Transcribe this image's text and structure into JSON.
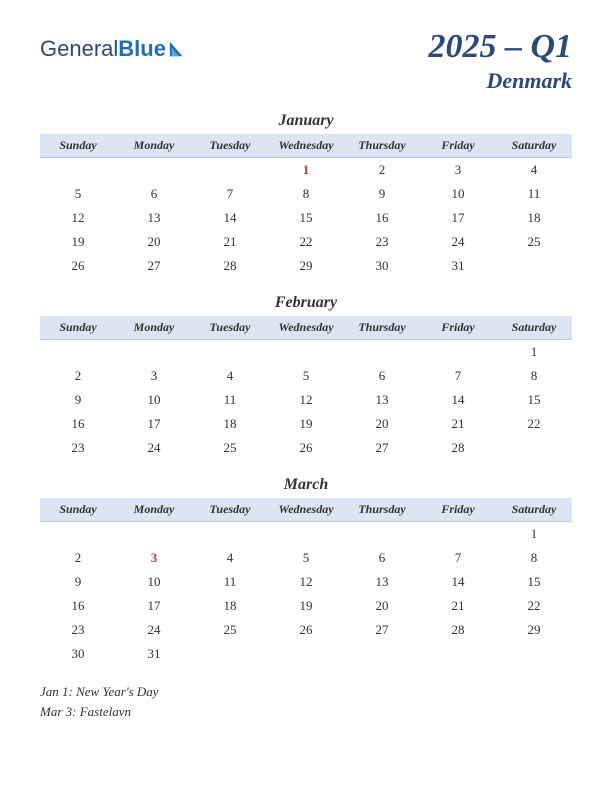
{
  "logo": {
    "part1": "General",
    "part2": "Blue"
  },
  "title": {
    "main": "2025 – Q1",
    "sub": "Denmark"
  },
  "header_bg": "#dbe5f4",
  "holiday_color": "#c0392b",
  "day_headers": [
    "Sunday",
    "Monday",
    "Tuesday",
    "Wednesday",
    "Thursday",
    "Friday",
    "Saturday"
  ],
  "months": [
    {
      "name": "January",
      "weeks": [
        [
          "",
          "",
          "",
          "1",
          "2",
          "3",
          "4"
        ],
        [
          "5",
          "6",
          "7",
          "8",
          "9",
          "10",
          "11"
        ],
        [
          "12",
          "13",
          "14",
          "15",
          "16",
          "17",
          "18"
        ],
        [
          "19",
          "20",
          "21",
          "22",
          "23",
          "24",
          "25"
        ],
        [
          "26",
          "27",
          "28",
          "29",
          "30",
          "31",
          ""
        ]
      ],
      "holidays": [
        [
          0,
          3
        ]
      ]
    },
    {
      "name": "February",
      "weeks": [
        [
          "",
          "",
          "",
          "",
          "",
          "",
          "1"
        ],
        [
          "2",
          "3",
          "4",
          "5",
          "6",
          "7",
          "8"
        ],
        [
          "9",
          "10",
          "11",
          "12",
          "13",
          "14",
          "15"
        ],
        [
          "16",
          "17",
          "18",
          "19",
          "20",
          "21",
          "22"
        ],
        [
          "23",
          "24",
          "25",
          "26",
          "27",
          "28",
          ""
        ]
      ],
      "holidays": []
    },
    {
      "name": "March",
      "weeks": [
        [
          "",
          "",
          "",
          "",
          "",
          "",
          "1"
        ],
        [
          "2",
          "3",
          "4",
          "5",
          "6",
          "7",
          "8"
        ],
        [
          "9",
          "10",
          "11",
          "12",
          "13",
          "14",
          "15"
        ],
        [
          "16",
          "17",
          "18",
          "19",
          "20",
          "21",
          "22"
        ],
        [
          "23",
          "24",
          "25",
          "26",
          "27",
          "28",
          "29"
        ],
        [
          "30",
          "31",
          "",
          "",
          "",
          "",
          ""
        ]
      ],
      "holidays": [
        [
          1,
          1
        ]
      ]
    }
  ],
  "holiday_notes": [
    "Jan 1: New Year's Day",
    "Mar 3: Fastelavn"
  ]
}
